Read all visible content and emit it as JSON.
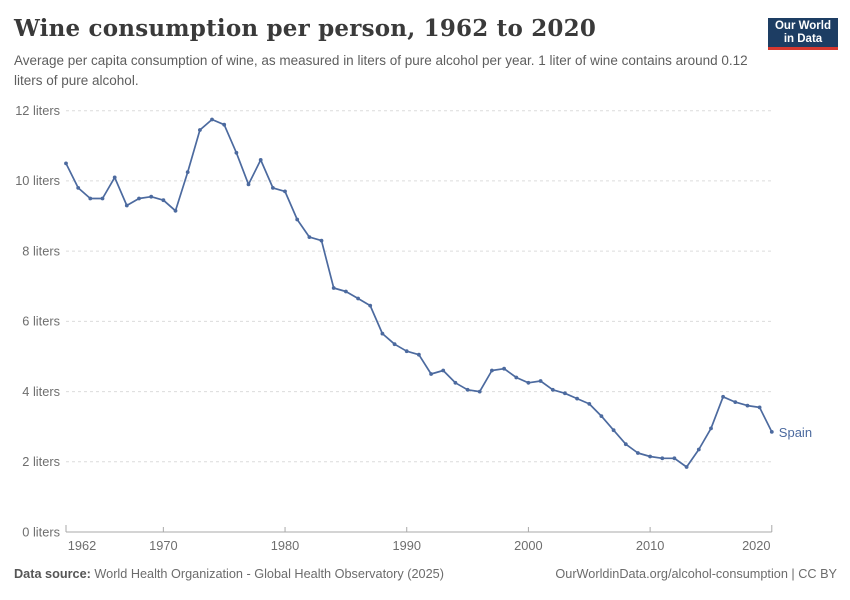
{
  "header": {
    "title": "Wine consumption per person, 1962 to 2020",
    "subtitle": "Average per capita consumption of wine, as measured in liters of pure alcohol per year. 1 liter of wine contains around 0.12 liters of pure alcohol.",
    "logo": {
      "line1": "Our World",
      "line2": "in Data",
      "bg_color": "#1d3d63",
      "stripe_color": "#d7382f"
    }
  },
  "chart_data": {
    "type": "line",
    "title": "Wine consumption per person, 1962 to 2020",
    "entity": "Spain",
    "ylabel": "liters of pure alcohol per year",
    "xlim": [
      1962,
      2020
    ],
    "ylim": [
      0,
      12
    ],
    "grid": "horizontal-dashed",
    "legend_position": "end-of-line-label",
    "line_color": "#4c6a9f",
    "years": [
      1962,
      1963,
      1964,
      1965,
      1966,
      1967,
      1968,
      1969,
      1970,
      1971,
      1972,
      1973,
      1974,
      1975,
      1976,
      1977,
      1978,
      1979,
      1980,
      1981,
      1982,
      1983,
      1984,
      1985,
      1986,
      1987,
      1988,
      1989,
      1990,
      1991,
      1992,
      1993,
      1994,
      1995,
      1996,
      1997,
      1998,
      1999,
      2000,
      2001,
      2002,
      2003,
      2004,
      2005,
      2006,
      2007,
      2008,
      2009,
      2010,
      2011,
      2012,
      2013,
      2014,
      2015,
      2016,
      2017,
      2018,
      2019,
      2020
    ],
    "values": [
      10.5,
      9.8,
      9.5,
      9.5,
      10.1,
      9.3,
      9.5,
      9.55,
      9.45,
      9.15,
      10.25,
      11.45,
      11.75,
      11.6,
      10.8,
      9.9,
      10.6,
      9.8,
      9.7,
      8.9,
      8.4,
      8.3,
      6.95,
      6.85,
      6.65,
      6.45,
      5.65,
      5.35,
      5.15,
      5.05,
      4.5,
      4.6,
      4.25,
      4.05,
      4.0,
      4.6,
      4.65,
      4.4,
      4.25,
      4.3,
      4.05,
      3.95,
      3.8,
      3.65,
      3.3,
      2.9,
      2.5,
      2.25,
      2.15,
      2.1,
      2.1,
      1.85,
      2.35,
      2.95,
      3.85,
      3.7,
      3.6,
      3.55,
      2.85
    ],
    "y_ticks": [
      {
        "value": 0,
        "label": "0 liters"
      },
      {
        "value": 2,
        "label": "2 liters"
      },
      {
        "value": 4,
        "label": "4 liters"
      },
      {
        "value": 6,
        "label": "6 liters"
      },
      {
        "value": 8,
        "label": "8 liters"
      },
      {
        "value": 10,
        "label": "10 liters"
      },
      {
        "value": 12,
        "label": "12 liters"
      }
    ],
    "x_ticks": [
      {
        "year": 1962,
        "label": "1962"
      },
      {
        "year": 1970,
        "label": "1970"
      },
      {
        "year": 1980,
        "label": "1980"
      },
      {
        "year": 1990,
        "label": "1990"
      },
      {
        "year": 2000,
        "label": "2000"
      },
      {
        "year": 2010,
        "label": "2010"
      },
      {
        "year": 2020,
        "label": "2020"
      }
    ]
  },
  "footer": {
    "source_label": "Data source:",
    "source_text": "World Health Organization - Global Health Observatory (2025)",
    "link_text": "OurWorldinData.org/alcohol-consumption | CC BY"
  }
}
